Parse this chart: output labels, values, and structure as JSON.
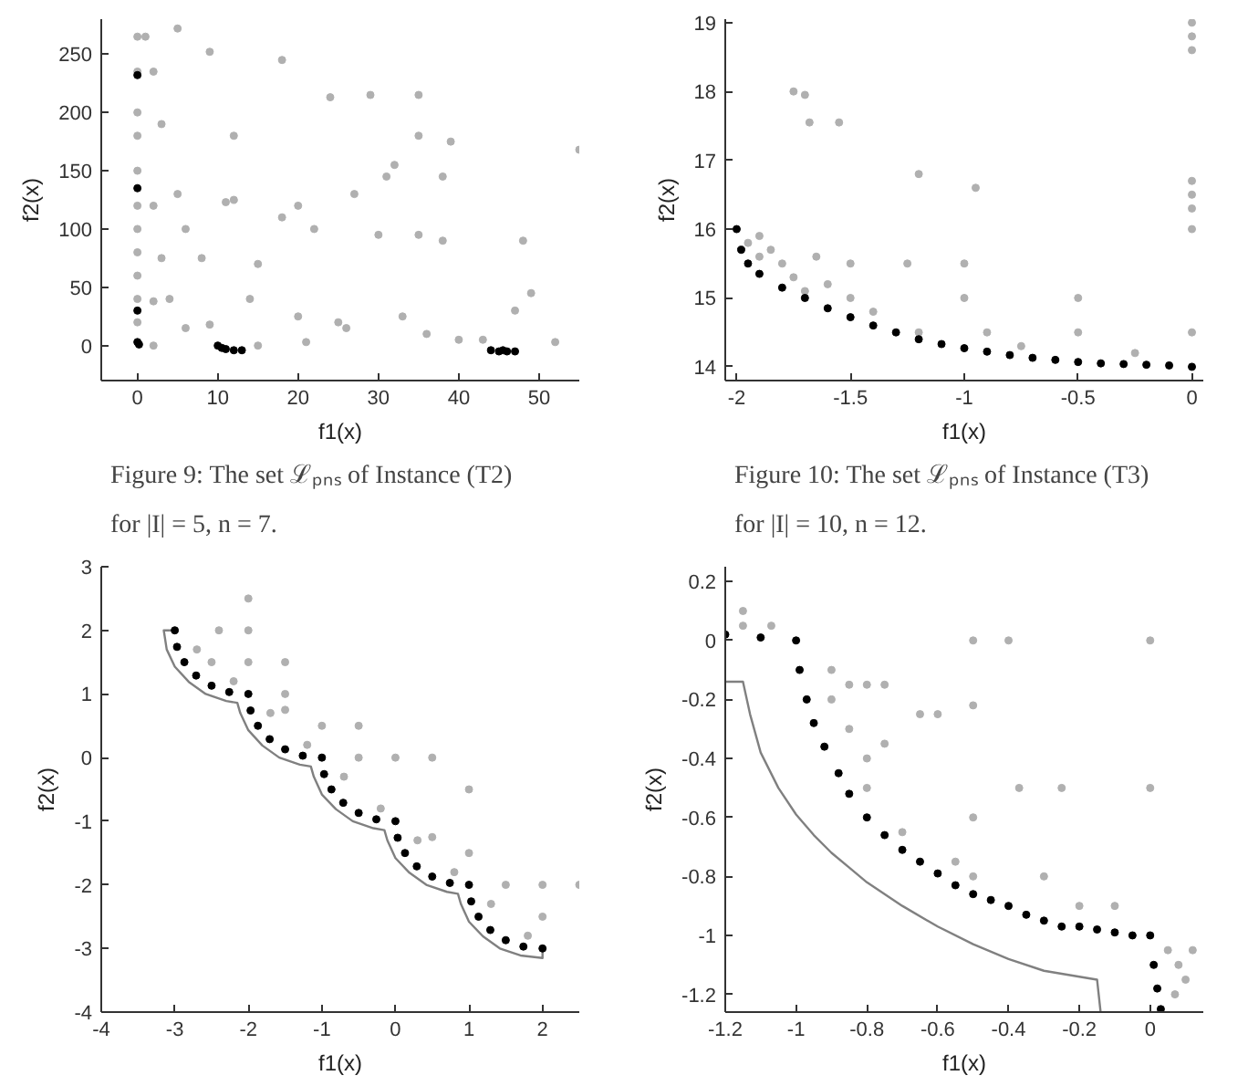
{
  "chart_data": [
    {
      "type": "scatter",
      "xlabel": "f1(x)",
      "ylabel": "f2(x)",
      "xlim": [
        -4.5,
        55
      ],
      "ylim": [
        -30,
        280
      ],
      "xticks": [
        0,
        10,
        20,
        30,
        40,
        50
      ],
      "yticks": [
        0,
        50,
        100,
        150,
        200,
        250
      ],
      "marker": "circle",
      "annotations": [
        "Figure 9: The set ℒₚₙₛ of Instance (T2)",
        "for |I| = 5, n = 7."
      ],
      "series": [
        {
          "color": "#b0b0b0",
          "x": [
            0,
            0,
            0,
            0,
            0,
            0,
            0,
            0,
            0,
            0,
            0,
            1,
            2,
            3,
            5,
            9,
            18,
            24,
            29,
            35,
            35,
            55,
            12,
            2,
            5,
            11,
            12,
            3,
            8,
            6,
            15,
            18,
            20,
            22,
            27,
            31,
            32,
            38,
            39,
            30,
            35,
            38,
            2,
            4,
            6,
            9,
            14,
            20,
            25,
            26,
            33,
            36,
            40,
            43,
            47,
            49,
            48,
            52,
            2,
            15,
            21
          ],
          "values": [
            265,
            235,
            200,
            180,
            150,
            120,
            100,
            80,
            60,
            40,
            20,
            265,
            235,
            190,
            272,
            252,
            245,
            213,
            215,
            215,
            180,
            168,
            180,
            120,
            130,
            123,
            125,
            75,
            75,
            100,
            70,
            110,
            120,
            100,
            130,
            145,
            155,
            145,
            175,
            95,
            95,
            90,
            38,
            40,
            15,
            18,
            40,
            25,
            20,
            15,
            25,
            10,
            5,
            5,
            30,
            45,
            90,
            3,
            0,
            0,
            3
          ]
        },
        {
          "color": "#000000",
          "x": [
            0,
            0.2,
            0,
            0,
            0,
            10,
            10.5,
            11,
            12,
            13,
            44,
            45,
            46,
            47,
            45.5
          ],
          "values": [
            3,
            1,
            232,
            135,
            30,
            0,
            -2,
            -3,
            -4,
            -4,
            -4,
            -5,
            -5,
            -5,
            -4
          ]
        }
      ]
    },
    {
      "type": "scatter",
      "xlabel": "f1(x)",
      "ylabel": "f2(x)",
      "xlim": [
        -2.05,
        0.05
      ],
      "ylim": [
        13.8,
        19.05
      ],
      "xticks": [
        -2,
        -1.5,
        -1,
        -0.5,
        0
      ],
      "yticks": [
        14,
        15,
        16,
        17,
        18,
        19
      ],
      "marker": "circle",
      "annotations": [
        "Figure 10: The set ℒₚₙₛ of Instance (T3)",
        "for |I| = 10, n = 12."
      ],
      "series": [
        {
          "color": "#b0b0b0",
          "x": [
            -1.95,
            -1.9,
            -1.9,
            -1.85,
            -1.8,
            -1.75,
            -1.7,
            -1.65,
            -1.6,
            -1.5,
            -1.5,
            -1.4,
            -1.25,
            -1.2,
            -1.0,
            -1.0,
            -0.9,
            -0.75,
            -0.5,
            -0.5,
            -0.25,
            0,
            0,
            0,
            0,
            0,
            0,
            0,
            0,
            -1.75,
            -1.7,
            -1.68,
            -1.55,
            -1.2,
            -0.95
          ],
          "values": [
            15.8,
            15.9,
            15.6,
            15.7,
            15.5,
            15.3,
            15.1,
            15.6,
            15.2,
            15.0,
            15.5,
            14.8,
            15.5,
            14.5,
            15.0,
            15.5,
            14.5,
            14.3,
            14.5,
            15.0,
            14.2,
            14.5,
            16.0,
            16.3,
            16.5,
            16.7,
            18.6,
            18.8,
            19.0,
            18.0,
            17.95,
            17.55,
            17.55,
            16.8,
            16.6
          ]
        },
        {
          "color": "#000000",
          "x": [
            -2,
            -1.98,
            -1.95,
            -1.9,
            -1.8,
            -1.7,
            -1.6,
            -1.5,
            -1.4,
            -1.3,
            -1.2,
            -1.1,
            -1,
            -0.9,
            -0.8,
            -0.7,
            -0.6,
            -0.5,
            -0.4,
            -0.3,
            -0.2,
            -0.1,
            0
          ],
          "values": [
            16,
            15.7,
            15.5,
            15.35,
            15.15,
            15.0,
            14.85,
            14.72,
            14.6,
            14.5,
            14.4,
            14.33,
            14.27,
            14.22,
            14.17,
            14.13,
            14.1,
            14.07,
            14.05,
            14.04,
            14.03,
            14.02,
            14.0
          ]
        }
      ]
    },
    {
      "type": "scatter",
      "xlabel": "f1(x)",
      "ylabel": "f2(x)",
      "xlim": [
        -4,
        2.5
      ],
      "ylim": [
        -4,
        3
      ],
      "xticks": [
        -4,
        -3,
        -2,
        -1,
        0,
        1,
        2
      ],
      "yticks": [
        -4,
        -3,
        -2,
        -1,
        0,
        1,
        2,
        3
      ],
      "marker": "circle",
      "series": [
        {
          "color": "#b0b0b0",
          "x": [
            -2,
            -2,
            -2,
            -2.4,
            -1.5,
            -1.5,
            -1.5,
            -1,
            -0.5,
            -0.5,
            0,
            0.5,
            1,
            1,
            0.5,
            1.5,
            2,
            2.5,
            2,
            -2.7,
            -2.5,
            -1.7,
            -0.7,
            0.3,
            1.3,
            -1.2,
            -0.2,
            0.8,
            1.8,
            -2.2
          ],
          "values": [
            2.5,
            2,
            1.5,
            2,
            1.5,
            1,
            0.75,
            0.5,
            0.5,
            0,
            0,
            0,
            -0.5,
            -1.5,
            -1.25,
            -2,
            -2,
            -2,
            -2.5,
            1.7,
            1.5,
            0.7,
            -0.3,
            -1.3,
            -2.3,
            0.2,
            -0.8,
            -1.8,
            -2.8,
            1.2
          ]
        },
        {
          "type": "line",
          "marker": "none",
          "color": "#808080",
          "x": [
            -3,
            -3.15,
            -3.11,
            -3.0,
            -2.81,
            -2.58,
            -2.3,
            -2.15,
            -2.11,
            -2.0,
            -1.81,
            -1.58,
            -1.3,
            -1.15,
            -1.11,
            -1.0,
            -0.81,
            -0.58,
            -0.3,
            -0.15,
            -0.11,
            0.0,
            0.19,
            0.42,
            0.7,
            0.85,
            0.89,
            1.0,
            1.19,
            1.42,
            1.7,
            2.0,
            2.0
          ],
          "values": [
            2,
            2,
            1.7,
            1.43,
            1.19,
            1.0,
            0.89,
            0.86,
            0.7,
            0.43,
            0.19,
            0.0,
            -0.11,
            -0.14,
            -0.3,
            -0.58,
            -0.81,
            -1.0,
            -1.11,
            -1.14,
            -1.3,
            -1.58,
            -1.81,
            -2.0,
            -2.11,
            -2.14,
            -2.3,
            -2.58,
            -2.81,
            -3.0,
            -3.11,
            -3.15,
            -3.0
          ]
        },
        {
          "color": "#000000",
          "x": [
            -3,
            -2.97,
            -2.87,
            -2.71,
            -2.5,
            -2.26,
            -2,
            -1.97,
            -1.87,
            -1.71,
            -1.5,
            -1.26,
            -1,
            -0.97,
            -0.87,
            -0.71,
            -0.5,
            -0.26,
            0,
            0.03,
            0.13,
            0.29,
            0.5,
            0.74,
            1,
            1.03,
            1.13,
            1.29,
            1.5,
            1.74,
            2
          ],
          "values": [
            2,
            1.74,
            1.5,
            1.29,
            1.13,
            1.03,
            1,
            0.74,
            0.5,
            0.29,
            0.13,
            0.03,
            0,
            -0.26,
            -0.5,
            -0.71,
            -0.87,
            -0.97,
            -1,
            -1.26,
            -1.5,
            -1.71,
            -1.87,
            -1.97,
            -2,
            -2.26,
            -2.5,
            -2.71,
            -2.87,
            -2.97,
            -3
          ]
        }
      ]
    },
    {
      "type": "scatter",
      "xlabel": "f1(x)",
      "ylabel": "f2(x)",
      "xlim": [
        -1.2,
        0.15
      ],
      "ylim": [
        -1.26,
        0.25
      ],
      "xticks": [
        -1.2,
        -1,
        -0.8,
        -0.6,
        -0.4,
        -0.2,
        0
      ],
      "yticks": [
        -1.2,
        -1,
        -0.8,
        -0.6,
        -0.4,
        -0.2,
        0,
        0.2
      ],
      "marker": "circle",
      "series": [
        {
          "color": "#b0b0b0",
          "x": [
            -1.15,
            -1.15,
            -1.07,
            -0.9,
            -0.9,
            -0.85,
            -0.8,
            -0.75,
            -0.85,
            -0.8,
            -0.75,
            -0.8,
            -0.7,
            -0.65,
            -0.6,
            -0.55,
            -0.5,
            -0.5,
            -0.5,
            -0.5,
            -0.4,
            -0.37,
            -0.3,
            -0.25,
            -0.2,
            -0.1,
            0.0,
            0.0,
            0.05,
            0.08,
            0.1,
            0.12,
            0.07
          ],
          "values": [
            0.1,
            0.05,
            0.05,
            -0.1,
            -0.2,
            -0.15,
            -0.15,
            -0.15,
            -0.3,
            -0.4,
            -0.35,
            -0.5,
            -0.65,
            -0.25,
            -0.25,
            -0.75,
            0.0,
            -0.22,
            -0.6,
            -0.8,
            0.0,
            -0.5,
            -0.8,
            -0.5,
            -0.9,
            -0.9,
            0.0,
            -0.5,
            -1.05,
            -1.1,
            -1.15,
            -1.05,
            -1.2
          ]
        },
        {
          "type": "line",
          "marker": "none",
          "color": "#808080",
          "x": [
            -1.2,
            -1.15,
            -1.13,
            -1.1,
            -1.05,
            -1.0,
            -0.95,
            -0.9,
            -0.85,
            -0.8,
            -0.7,
            -0.6,
            -0.5,
            -0.4,
            -0.3,
            -0.2,
            -0.15,
            -0.14
          ],
          "values": [
            -0.14,
            -0.14,
            -0.25,
            -0.38,
            -0.5,
            -0.59,
            -0.66,
            -0.72,
            -0.77,
            -0.82,
            -0.9,
            -0.97,
            -1.03,
            -1.08,
            -1.12,
            -1.14,
            -1.15,
            -1.26
          ]
        },
        {
          "color": "#000000",
          "x": [
            -1.2,
            -1.1,
            -1.0,
            -0.99,
            -0.97,
            -0.95,
            -0.92,
            -0.88,
            -0.85,
            -0.8,
            -0.75,
            -0.7,
            -0.65,
            -0.6,
            -0.55,
            -0.5,
            -0.45,
            -0.4,
            -0.35,
            -0.3,
            -0.25,
            -0.2,
            -0.15,
            -0.1,
            -0.05,
            0.0,
            0.01,
            0.02,
            0.03
          ],
          "values": [
            0.02,
            0.01,
            0.0,
            -0.1,
            -0.2,
            -0.28,
            -0.36,
            -0.45,
            -0.52,
            -0.6,
            -0.66,
            -0.71,
            -0.75,
            -0.79,
            -0.83,
            -0.86,
            -0.88,
            -0.9,
            -0.93,
            -0.95,
            -0.97,
            -0.97,
            -0.98,
            -0.99,
            -1.0,
            -1.0,
            -1.1,
            -1.18,
            -1.25
          ]
        }
      ]
    }
  ]
}
